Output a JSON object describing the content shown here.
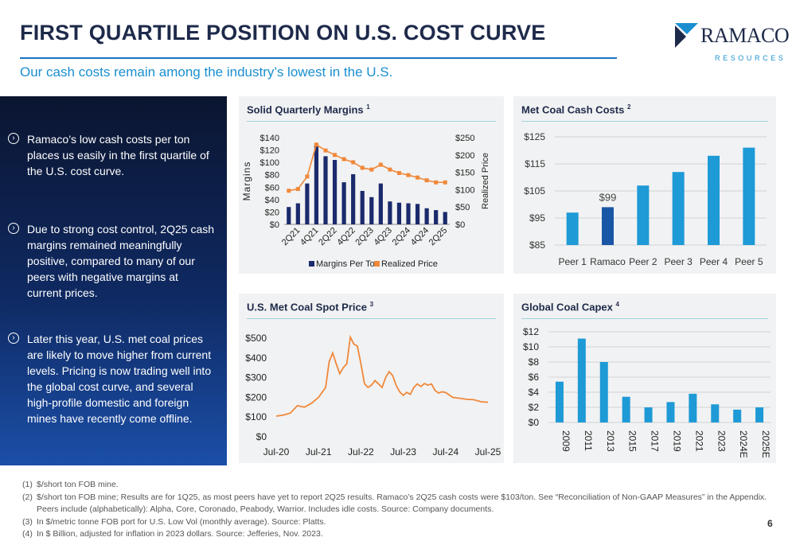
{
  "header": {
    "title": "FIRST QUARTILE POSITION ON U.S. COST CURVE",
    "subtitle": "Our cash costs remain among the industry’s lowest in the U.S."
  },
  "logo": {
    "name": "RAMACO",
    "sub": "RESOURCES",
    "icon": "ramaco-logo-mark"
  },
  "bullets": [
    "Ramaco’s low cash costs per ton places us easily in the first quartile of the U.S. cost curve.",
    "Due to strong cost control, 2Q25 cash margins remained meaningfully positive, compared to many of our peers with negative margins at current prices.",
    "Later this year, U.S. met coal prices are likely to move higher from current levels. Pricing is now trading well into the global cost curve, and several high-profile domestic and foreign mines have recently come offline."
  ],
  "bullet_icon": "chevron-circle-icon",
  "cards": {
    "margins": {
      "title": "Solid Quarterly Margins",
      "note": "1"
    },
    "cash_costs": {
      "title": "Met Coal Cash Costs",
      "note": "2"
    },
    "spot": {
      "title": "U.S. Met Coal Spot Price",
      "note": "3"
    },
    "capex": {
      "title": "Global Coal Capex",
      "note": "4"
    }
  },
  "colors": {
    "navy": "#1a2a6c",
    "orange": "#f0883a",
    "blue": "#1e9ad6",
    "dark_blue": "#1a56a6",
    "teal_rule": "#9fd4dc"
  },
  "chart_data": [
    {
      "type": "bar",
      "subtype": "bar-line-combo",
      "title": "Solid Quarterly Margins",
      "ylabel": "Margins",
      "y2label": "Realized Price",
      "ylim": [
        0,
        140
      ],
      "y2lim": [
        0,
        250
      ],
      "yticks": [
        "$0",
        "$20",
        "$40",
        "$60",
        "$80",
        "$100",
        "$120",
        "$140"
      ],
      "y2ticks": [
        "$0",
        "$50",
        "$100",
        "$150",
        "$200",
        "$250"
      ],
      "categories": [
        "1Q21",
        "2Q21",
        "3Q21",
        "4Q21",
        "1Q22",
        "2Q22",
        "3Q22",
        "4Q22",
        "1Q23",
        "2Q23",
        "3Q23",
        "4Q23",
        "1Q24",
        "2Q24",
        "3Q24",
        "4Q24",
        "1Q25",
        "2Q25"
      ],
      "xtick_labels": [
        "2Q21",
        "4Q21",
        "2Q22",
        "4Q22",
        "2Q23",
        "4Q23",
        "2Q24",
        "4Q24",
        "2Q25"
      ],
      "series": [
        {
          "name": "Margins Per Ton",
          "type": "bar",
          "axis": "left",
          "values": [
            28,
            34,
            66,
            130,
            110,
            104,
            68,
            81,
            54,
            44,
            66,
            37,
            35,
            34,
            33,
            26,
            23,
            20
          ]
        },
        {
          "name": "Realized Price",
          "type": "line",
          "axis": "right",
          "values": [
            97,
            102,
            138,
            230,
            213,
            200,
            188,
            179,
            163,
            158,
            172,
            158,
            148,
            142,
            135,
            127,
            121,
            121
          ]
        }
      ],
      "legend": "bottom"
    },
    {
      "type": "bar",
      "title": "Met Coal Cash Costs",
      "categories": [
        "Peer 1",
        "Ramaco",
        "Peer 2",
        "Peer 3",
        "Peer 4",
        "Peer 5"
      ],
      "values": [
        97,
        99,
        107,
        112,
        118,
        121
      ],
      "highlight": "Ramaco",
      "data_labels": {
        "Ramaco": "$99"
      },
      "ylim": [
        85,
        125
      ],
      "yticks": [
        "$85",
        "$95",
        "$105",
        "$115",
        "$125"
      ],
      "grid": true
    },
    {
      "type": "line",
      "title": "U.S. Met Coal Spot Price",
      "x": [
        "Jul-20",
        "Sep-20",
        "Nov-20",
        "Jan-21",
        "Mar-21",
        "May-21",
        "Jul-21",
        "Sep-21",
        "Oct-21",
        "Nov-21",
        "Dec-21",
        "Jan-22",
        "Feb-22",
        "Mar-22",
        "Apr-22",
        "May-22",
        "Jun-22",
        "Jul-22",
        "Aug-22",
        "Sep-22",
        "Oct-22",
        "Nov-22",
        "Dec-22",
        "Jan-23",
        "Feb-23",
        "Mar-23",
        "Apr-23",
        "May-23",
        "Jun-23",
        "Jul-23",
        "Aug-23",
        "Sep-23",
        "Oct-23",
        "Nov-23",
        "Dec-23",
        "Jan-24",
        "Feb-24",
        "Mar-24",
        "Apr-24",
        "May-24",
        "Jun-24",
        "Jul-24",
        "Sep-24",
        "Nov-24",
        "Jan-25",
        "Mar-25",
        "May-25",
        "Jul-25"
      ],
      "values": [
        105,
        110,
        120,
        158,
        150,
        170,
        200,
        250,
        380,
        425,
        370,
        320,
        350,
        370,
        505,
        470,
        460,
        370,
        270,
        250,
        262,
        285,
        268,
        250,
        300,
        330,
        310,
        260,
        228,
        210,
        225,
        215,
        250,
        268,
        255,
        270,
        262,
        268,
        235,
        222,
        228,
        225,
        200,
        195,
        190,
        188,
        178,
        175
      ],
      "xticks": [
        "Jul-20",
        "Jul-21",
        "Jul-22",
        "Jul-23",
        "Jul-24",
        "Jul-25"
      ],
      "ylim": [
        0,
        500
      ],
      "yticks": [
        "$0",
        "$100",
        "$200",
        "$300",
        "$400",
        "$500"
      ],
      "grid": false
    },
    {
      "type": "bar",
      "title": "Global Coal Capex",
      "categories": [
        "2009",
        "2011",
        "2013",
        "2015",
        "2017",
        "2019",
        "2021",
        "2023",
        "2024E",
        "2025E"
      ],
      "values": [
        5.4,
        11.1,
        8.0,
        3.4,
        2.0,
        2.7,
        3.8,
        2.4,
        1.7,
        2.0
      ],
      "ylim": [
        0,
        12
      ],
      "yticks": [
        "$0",
        "$2",
        "$4",
        "$6",
        "$8",
        "$10",
        "$12"
      ],
      "grid": true
    }
  ],
  "footnotes": [
    {
      "n": "(1)",
      "text": "$/short ton FOB mine."
    },
    {
      "n": "(2)",
      "text": "$/short ton FOB mine; Results are for 1Q25, as most peers have yet to report 2Q25 results. Ramaco’s 2Q25 cash costs were $103/ton. See “Reconciliation of Non-GAAP Measures” in the Appendix."
    },
    {
      "n": "",
      "text": "Peers include (alphabetically): Alpha, Core, Coronado, Peabody, Warrior. Includes idle costs. Source: Company documents."
    },
    {
      "n": "(3)",
      "text": "In $/metric tonne FOB port for U.S. Low Vol (monthly average). Source: Platts."
    },
    {
      "n": "(4)",
      "text": "In $ Billion, adjusted for inflation in 2023 dollars. Source: Jefferies, Nov. 2023."
    }
  ],
  "page_number": "6"
}
